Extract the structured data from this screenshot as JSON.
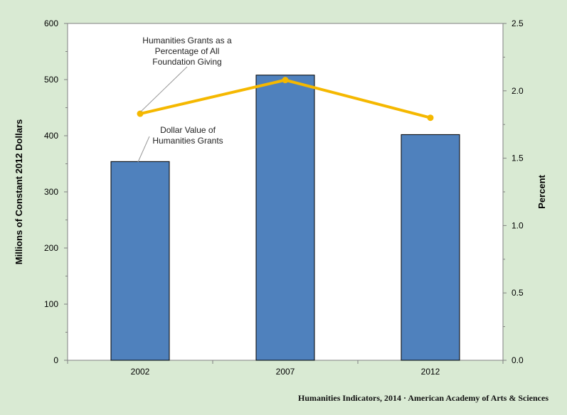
{
  "chart_data": {
    "type": "bar",
    "categories": [
      "2002",
      "2007",
      "2012"
    ],
    "series": [
      {
        "name": "Dollar Value of Humanities Grants",
        "axis": "left",
        "kind": "bar",
        "values": [
          354,
          508,
          402
        ],
        "color": "#4f81bd"
      },
      {
        "name": "Humanities Grants as a Percentage of All Foundation Giving",
        "axis": "right",
        "kind": "line",
        "values": [
          1.83,
          2.08,
          1.8
        ],
        "color": "#f5b800"
      }
    ],
    "ylabel": "Millions of Constant 2012 Dollars",
    "y2label": "Percent",
    "ylim": [
      0,
      600
    ],
    "y2lim": [
      0,
      2.5
    ],
    "yticks": [
      "0",
      "100",
      "200",
      "300",
      "400",
      "500",
      "600"
    ],
    "y2ticks": [
      "0.0",
      "0.5",
      "1.0",
      "1.5",
      "2.0",
      "2.5"
    ],
    "annotations": {
      "line_label": [
        "Humanities Grants as a",
        "Percentage of All",
        "Foundation Giving"
      ],
      "bar_label": [
        "Dollar Value of",
        "Humanities Grants"
      ]
    },
    "grid": false,
    "legend": "none"
  },
  "credit": "Humanities Indicators, 2014 · American Academy of Arts & Sciences"
}
